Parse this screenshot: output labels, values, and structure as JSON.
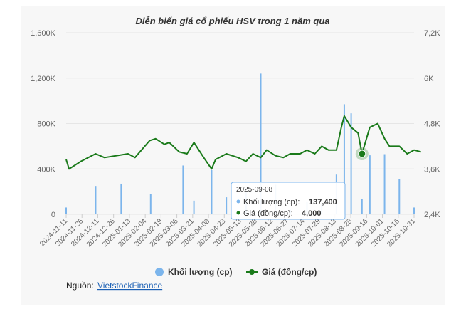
{
  "chart_data": {
    "type": "bar+line",
    "title": "Diễn biến giá cổ phiếu HSV trong 1 năm qua",
    "x_ticks": [
      "2024-11-11",
      "2024-11-26",
      "2024-12-11",
      "2024-12-26",
      "2025-01-13",
      "2025-02-04",
      "2025-02-19",
      "2025-03-06",
      "2025-03-21",
      "2025-04-08",
      "2025-04-23",
      "2025-05-13",
      "2025-05-28",
      "2025-06-12",
      "2025-06-27",
      "2025-07-14",
      "2025-07-29",
      "2025-08-13",
      "2025-08-28",
      "2025-09-16",
      "2025-10-01",
      "2025-10-16",
      "2025-10-31"
    ],
    "left_axis": {
      "ticks": [
        "0",
        "400K",
        "800K",
        "1,200K",
        "1,600K"
      ],
      "tick_values": [
        0,
        400000,
        800000,
        1200000,
        1600000
      ],
      "range": [
        0,
        1600000
      ]
    },
    "right_axis": {
      "ticks": [
        "2,4K",
        "3,6K",
        "4,8K",
        "6K",
        "7,2K"
      ],
      "tick_values": [
        2400,
        3600,
        4800,
        6000,
        7200
      ],
      "range": [
        2400,
        7200
      ]
    },
    "series": [
      {
        "name": "Khối lượng (cp)",
        "kind": "column",
        "axis": "left",
        "color": "#7cb5ec",
        "x": [
          "2024-11-11",
          "2024-12-11",
          "2025-01-06",
          "2025-02-05",
          "2025-03-10",
          "2025-03-21",
          "2025-04-08",
          "2025-04-23",
          "2025-05-13",
          "2025-05-28",
          "2025-06-12",
          "2025-06-27",
          "2025-07-14",
          "2025-07-29",
          "2025-08-13",
          "2025-08-21",
          "2025-08-28",
          "2025-09-08",
          "2025-09-16",
          "2025-10-01",
          "2025-10-16",
          "2025-10-31"
        ],
        "values": [
          60000,
          250000,
          270000,
          180000,
          430000,
          120000,
          390000,
          150000,
          200000,
          1240000,
          260000,
          40000,
          110000,
          90000,
          350000,
          970000,
          890000,
          137400,
          520000,
          530000,
          310000,
          60000
        ]
      },
      {
        "name": "Giá (đồng/cp)",
        "kind": "line",
        "axis": "right",
        "color": "#1a7a1a",
        "x": [
          "2024-11-11",
          "2024-11-14",
          "2024-11-26",
          "2024-12-11",
          "2024-12-20",
          "2025-01-13",
          "2025-01-20",
          "2025-02-04",
          "2025-02-10",
          "2025-02-19",
          "2025-02-24",
          "2025-03-06",
          "2025-03-14",
          "2025-03-21",
          "2025-03-31",
          "2025-04-08",
          "2025-04-12",
          "2025-04-23",
          "2025-05-05",
          "2025-05-13",
          "2025-05-20",
          "2025-05-28",
          "2025-06-03",
          "2025-06-12",
          "2025-06-20",
          "2025-06-27",
          "2025-07-07",
          "2025-07-14",
          "2025-07-22",
          "2025-07-29",
          "2025-08-05",
          "2025-08-13",
          "2025-08-18",
          "2025-08-21",
          "2025-08-28",
          "2025-09-04",
          "2025-09-08",
          "2025-09-16",
          "2025-09-24",
          "2025-10-01",
          "2025-10-06",
          "2025-10-16",
          "2025-10-24",
          "2025-10-31",
          "2025-11-07"
        ],
        "values": [
          3850,
          3600,
          3800,
          4000,
          3900,
          4000,
          3900,
          4350,
          4400,
          4250,
          4300,
          4050,
          4000,
          4300,
          3900,
          3600,
          3850,
          4000,
          3900,
          3800,
          4000,
          3900,
          4100,
          3950,
          3900,
          4000,
          4000,
          4100,
          4000,
          4200,
          4100,
          4100,
          4700,
          5000,
          4700,
          4550,
          4000,
          4700,
          4800,
          4400,
          4200,
          4200,
          4000,
          4100,
          4050
        ]
      }
    ],
    "tooltip": {
      "date": "2025-09-08",
      "volume_label": "Khối lượng (cp):",
      "volume_value": "137,400",
      "price_label": "Giá (đồng/cp):",
      "price_value": "4,000"
    },
    "legend": [
      {
        "label": "Khối lượng (cp)",
        "color": "#7cb5ec",
        "marker": "circle"
      },
      {
        "label": "Giá (đồng/cp)",
        "color": "#1a7a1a",
        "marker": "line-dot"
      }
    ],
    "legend_position": "bottom"
  },
  "source": {
    "label": "Nguồn:",
    "link_text": "VietstockFinance"
  }
}
